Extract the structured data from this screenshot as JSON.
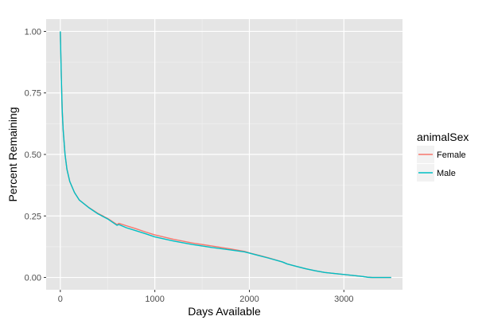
{
  "chart_data": {
    "type": "line",
    "title": "",
    "xlabel": "Days Available",
    "ylabel": "Percent Remaining",
    "xlim": [
      -150,
      3620
    ],
    "ylim": [
      -0.05,
      1.05
    ],
    "x_ticks": [
      0,
      1000,
      2000,
      3000
    ],
    "x_tick_labels": [
      "0",
      "1000",
      "2000",
      "3000"
    ],
    "y_ticks": [
      0,
      0.25,
      0.5,
      0.75,
      1.0
    ],
    "y_tick_labels": [
      "0.00",
      "0.25",
      "0.50",
      "0.75",
      "1.00"
    ],
    "grid": true,
    "background": "#e5e5e5",
    "grid_color": "#ffffff",
    "legend": {
      "title": "animalSex",
      "position": "right",
      "entries": [
        "Female",
        "Male"
      ]
    },
    "series": [
      {
        "name": "Female",
        "color": "#f8766d",
        "x": [
          0,
          10,
          20,
          30,
          50,
          70,
          100,
          150,
          200,
          300,
          400,
          500,
          600,
          620,
          700,
          800,
          900,
          1000,
          1200,
          1400,
          1600,
          1800,
          1950,
          2000,
          2100,
          2200,
          2350,
          2400,
          2500,
          2600,
          2700,
          2800,
          3000,
          3100,
          3200,
          3250,
          3300,
          3400,
          3500
        ],
        "y": [
          1.0,
          0.82,
          0.68,
          0.6,
          0.5,
          0.44,
          0.39,
          0.345,
          0.315,
          0.285,
          0.26,
          0.24,
          0.215,
          0.22,
          0.21,
          0.198,
          0.185,
          0.173,
          0.155,
          0.14,
          0.128,
          0.116,
          0.106,
          0.1,
          0.09,
          0.08,
          0.063,
          0.055,
          0.045,
          0.035,
          0.027,
          0.02,
          0.012,
          0.008,
          0.004,
          0.001,
          0.0,
          0.0,
          0.0
        ]
      },
      {
        "name": "Male",
        "color": "#00bfc4",
        "x": [
          0,
          10,
          20,
          30,
          50,
          70,
          100,
          150,
          200,
          300,
          400,
          500,
          600,
          620,
          700,
          800,
          900,
          1000,
          1200,
          1400,
          1600,
          1800,
          1950,
          2000,
          2100,
          2200,
          2350,
          2400,
          2500,
          2600,
          2700,
          2800,
          3000,
          3100,
          3200,
          3250,
          3300,
          3400,
          3500
        ],
        "y": [
          1.0,
          0.82,
          0.68,
          0.6,
          0.5,
          0.44,
          0.39,
          0.345,
          0.315,
          0.284,
          0.258,
          0.238,
          0.212,
          0.215,
          0.202,
          0.19,
          0.178,
          0.165,
          0.148,
          0.134,
          0.122,
          0.112,
          0.104,
          0.099,
          0.089,
          0.079,
          0.063,
          0.055,
          0.045,
          0.035,
          0.027,
          0.02,
          0.012,
          0.008,
          0.004,
          0.001,
          0.0,
          0.0,
          0.0
        ]
      }
    ]
  }
}
